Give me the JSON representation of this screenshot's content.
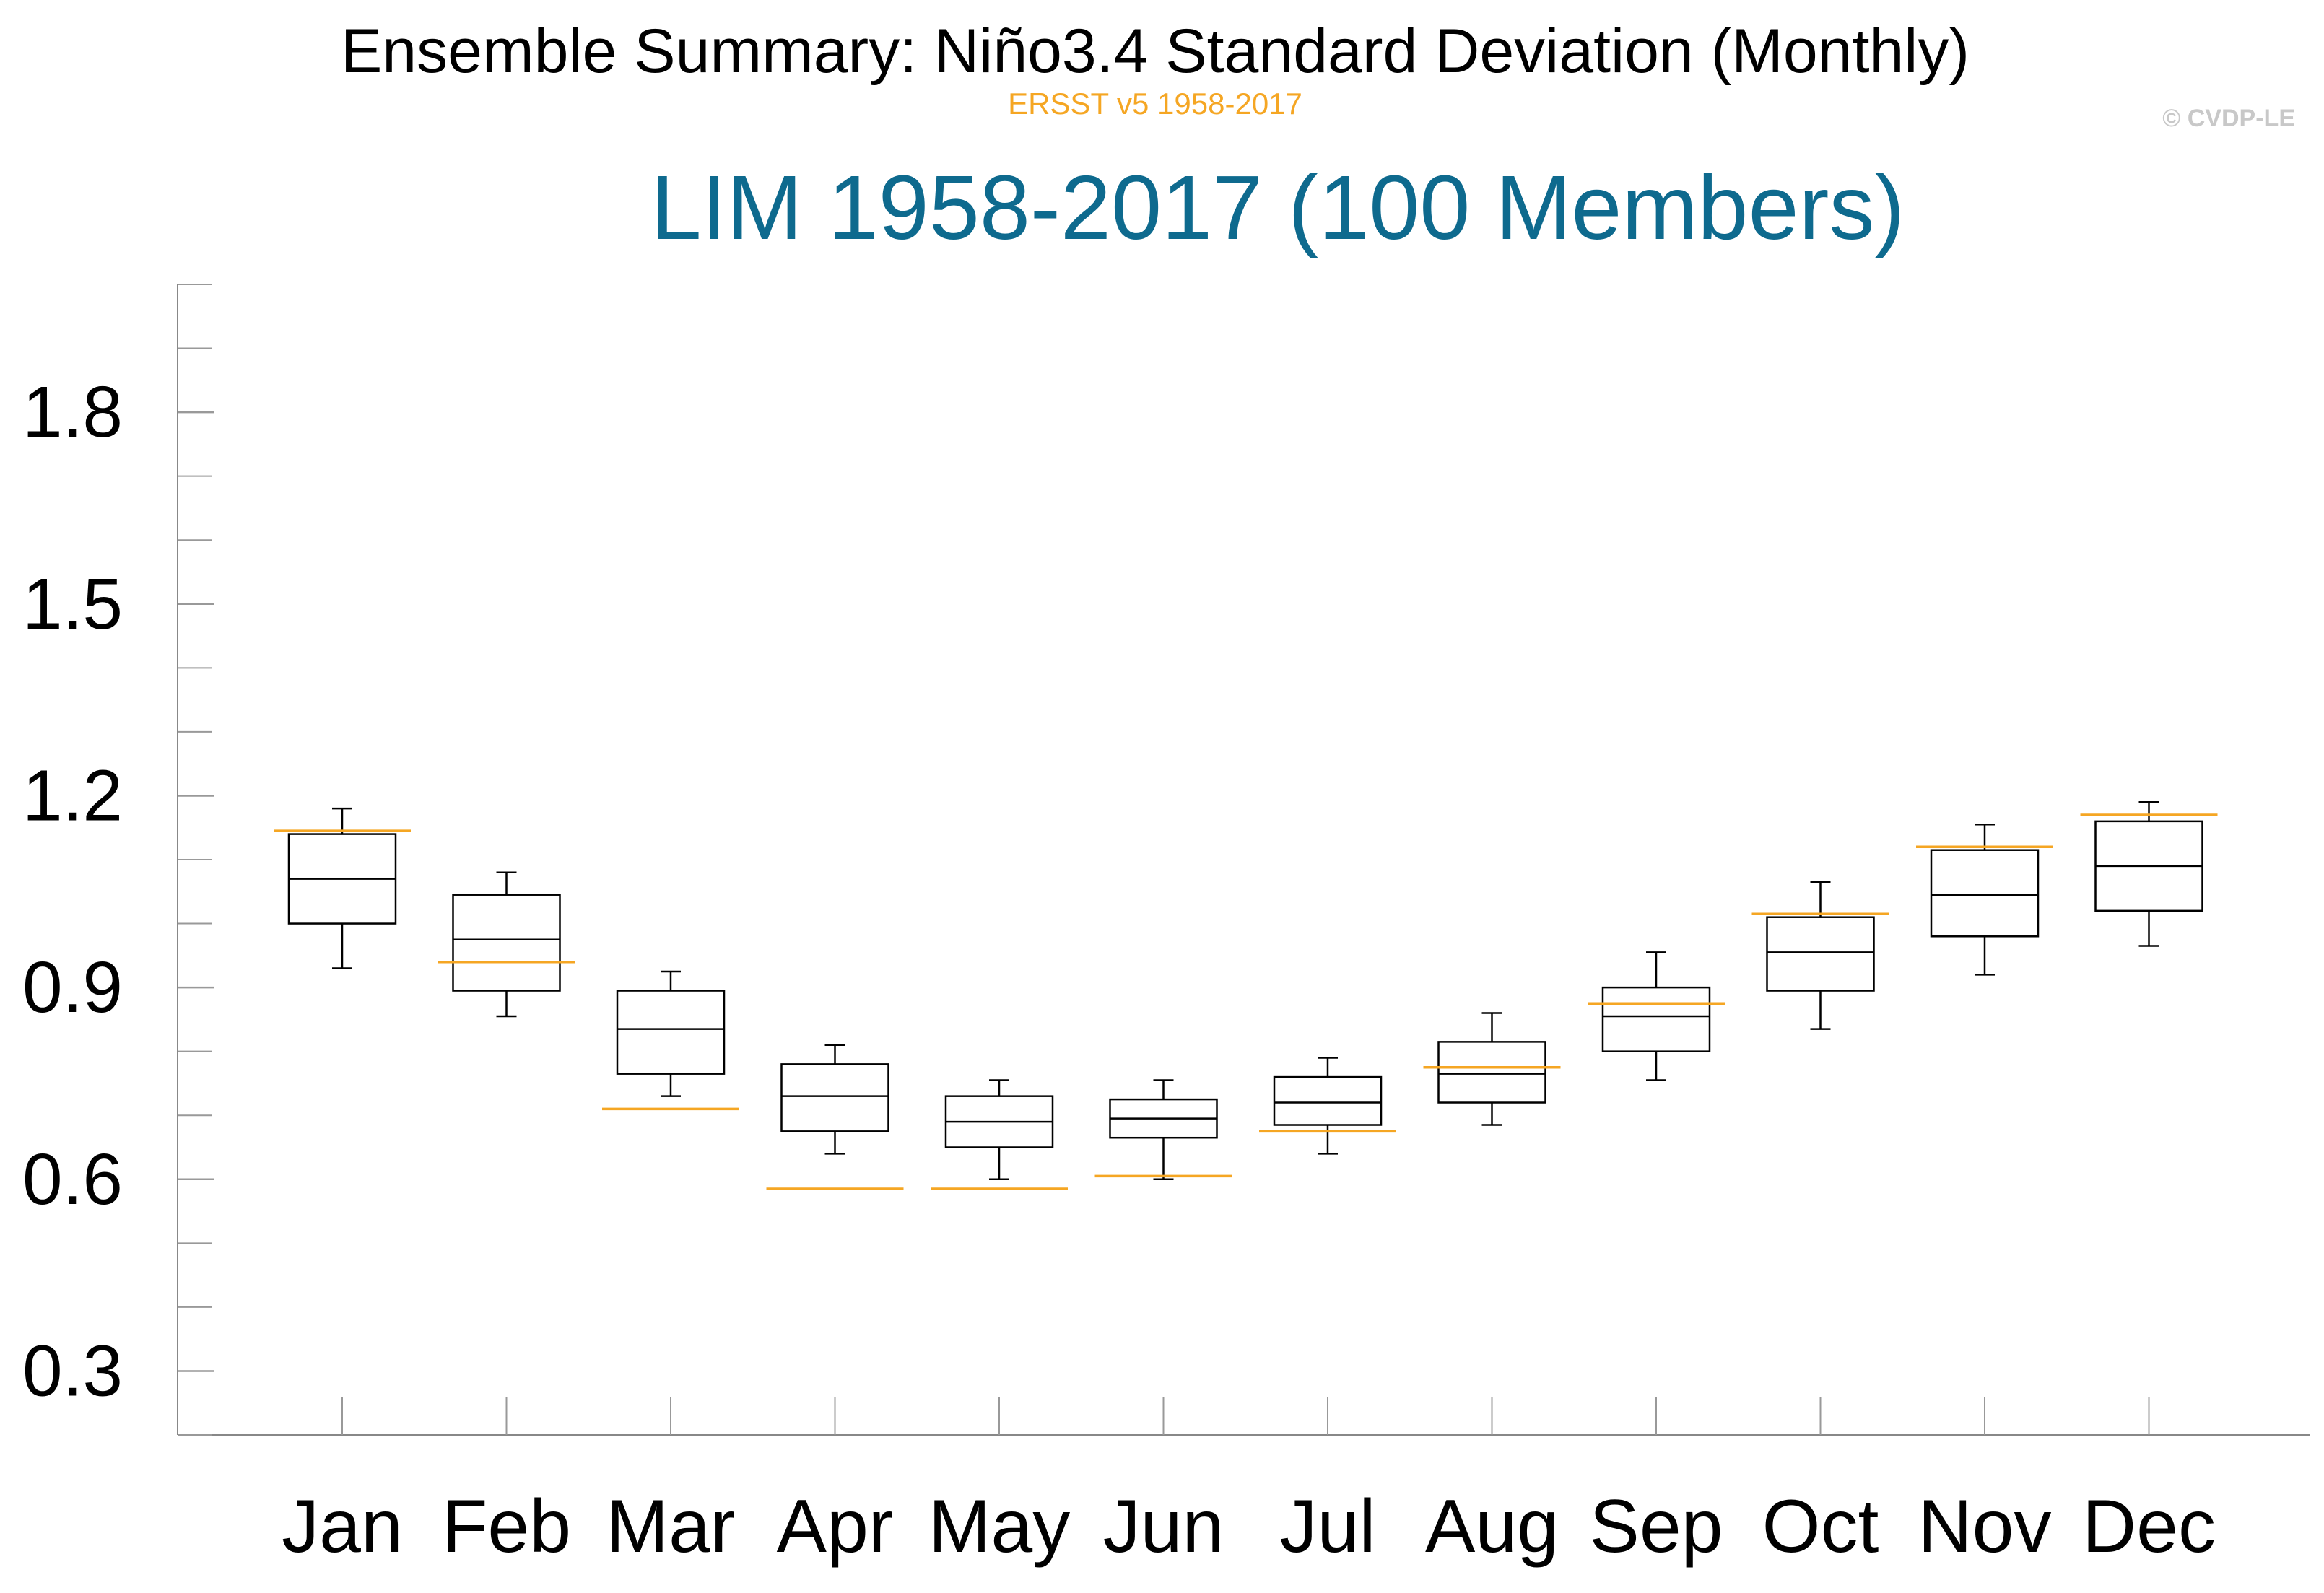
{
  "header": {
    "title": "Ensemble Summary: Niño3.4 Standard Deviation (Monthly)",
    "subtitle": "ERSST v5 1958-2017",
    "copyright": "© CVDP-LE",
    "ensemble_title": "LIM 1958-2017 (100 Members)"
  },
  "colors": {
    "observation": "#f5a623",
    "ensemble_title": "#0e6a8e",
    "box": "#000000"
  },
  "chart_data": {
    "type": "box",
    "title": "LIM 1958-2017 (100 Members)",
    "xlabel": "",
    "ylabel": "",
    "ylim": [
      0.2,
      2.0
    ],
    "yticks": [
      "0.3",
      "0.6",
      "0.9",
      "1.2",
      "1.5",
      "1.8"
    ],
    "grid": false,
    "categories": [
      "Jan",
      "Feb",
      "Mar",
      "Apr",
      "May",
      "Jun",
      "Jul",
      "Aug",
      "Sep",
      "Oct",
      "Nov",
      "Dec"
    ],
    "series": [
      {
        "name": "LIM",
        "boxes": [
          {
            "min": 0.93,
            "q1": 1.0,
            "median": 1.07,
            "q3": 1.14,
            "max": 1.18
          },
          {
            "min": 0.855,
            "q1": 0.895,
            "median": 0.975,
            "q3": 1.045,
            "max": 1.08
          },
          {
            "min": 0.73,
            "q1": 0.765,
            "median": 0.835,
            "q3": 0.895,
            "max": 0.925
          },
          {
            "min": 0.64,
            "q1": 0.675,
            "median": 0.73,
            "q3": 0.78,
            "max": 0.81
          },
          {
            "min": 0.6,
            "q1": 0.65,
            "median": 0.69,
            "q3": 0.73,
            "max": 0.755
          },
          {
            "min": 0.6,
            "q1": 0.665,
            "median": 0.695,
            "q3": 0.725,
            "max": 0.755
          },
          {
            "min": 0.64,
            "q1": 0.685,
            "median": 0.72,
            "q3": 0.76,
            "max": 0.79
          },
          {
            "min": 0.685,
            "q1": 0.72,
            "median": 0.765,
            "q3": 0.815,
            "max": 0.86
          },
          {
            "min": 0.755,
            "q1": 0.8,
            "median": 0.855,
            "q3": 0.9,
            "max": 0.955
          },
          {
            "min": 0.835,
            "q1": 0.895,
            "median": 0.955,
            "q3": 1.01,
            "max": 1.065
          },
          {
            "min": 0.92,
            "q1": 0.98,
            "median": 1.045,
            "q3": 1.115,
            "max": 1.155
          },
          {
            "min": 0.965,
            "q1": 1.02,
            "median": 1.09,
            "q3": 1.16,
            "max": 1.19
          }
        ]
      },
      {
        "name": "ERSST v5 1958-2017",
        "values": [
          1.145,
          0.94,
          0.71,
          0.585,
          0.585,
          0.605,
          0.675,
          0.775,
          0.875,
          1.015,
          1.12,
          1.17
        ]
      }
    ]
  }
}
